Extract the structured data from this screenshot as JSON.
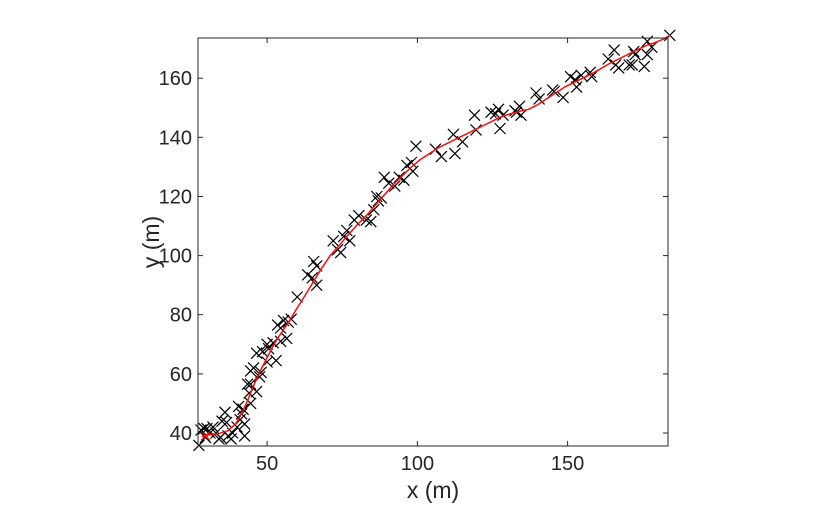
{
  "figure": {
    "background": "#ffffff"
  },
  "chart_data": {
    "type": "scatter",
    "title": "",
    "xlabel": "x (m)",
    "ylabel": "y (m)",
    "xlim": [
      27,
      183.4
    ],
    "ylim": [
      35.6,
      173.6
    ],
    "xticks": [
      50,
      100,
      150
    ],
    "yticks": [
      40,
      60,
      80,
      100,
      120,
      140,
      160
    ],
    "grid": false,
    "legend": null,
    "box": true,
    "axis_color": "#262626",
    "tick_label_color": "#262626",
    "series": [
      {
        "name": "measurements",
        "kind": "scatter",
        "marker": "x",
        "color": "#000000",
        "marker_size": 11,
        "points": [
          [
            27.3,
            35.8
          ],
          [
            28,
            41
          ],
          [
            29,
            41.5
          ],
          [
            29.5,
            38.5
          ],
          [
            30,
            41.5
          ],
          [
            31,
            40
          ],
          [
            32,
            42
          ],
          [
            33,
            40
          ],
          [
            34,
            38
          ],
          [
            34.5,
            38.5
          ],
          [
            35,
            44
          ],
          [
            36,
            47
          ],
          [
            36.5,
            43.5
          ],
          [
            37,
            39
          ],
          [
            38,
            38
          ],
          [
            38.5,
            40
          ],
          [
            40,
            42
          ],
          [
            40.5,
            49
          ],
          [
            41,
            44.5
          ],
          [
            41.5,
            46.5
          ],
          [
            42,
            48
          ],
          [
            42.5,
            39
          ],
          [
            42.5,
            43
          ],
          [
            43.5,
            56.5
          ],
          [
            44,
            53.5
          ],
          [
            44.5,
            50
          ],
          [
            44.5,
            56.5
          ],
          [
            44.5,
            61
          ],
          [
            45.5,
            62
          ],
          [
            46.5,
            54
          ],
          [
            46.5,
            67
          ],
          [
            47.5,
            59
          ],
          [
            48,
            60.5
          ],
          [
            48.5,
            67.5
          ],
          [
            50,
            64
          ],
          [
            50,
            70
          ],
          [
            50.5,
            68.5
          ],
          [
            52,
            70.5
          ],
          [
            53,
            64.5
          ],
          [
            53.5,
            76.5
          ],
          [
            54.5,
            71
          ],
          [
            54.5,
            75.5
          ],
          [
            55.5,
            78
          ],
          [
            56.5,
            72
          ],
          [
            57,
            77.5
          ],
          [
            58,
            78.5
          ],
          [
            60,
            86
          ],
          [
            63.5,
            93.5
          ],
          [
            65,
            92.5
          ],
          [
            65.5,
            98
          ],
          [
            66.5,
            96.5
          ],
          [
            66.5,
            90
          ],
          [
            72,
            105
          ],
          [
            73.5,
            102
          ],
          [
            74.5,
            101
          ],
          [
            75.5,
            106.5
          ],
          [
            76.5,
            108.5
          ],
          [
            77.5,
            105
          ],
          [
            79,
            112
          ],
          [
            80.5,
            113.5
          ],
          [
            83,
            112
          ],
          [
            84.5,
            111.5
          ],
          [
            85.5,
            115.5
          ],
          [
            86.5,
            120
          ],
          [
            87,
            118.5
          ],
          [
            88,
            119.5
          ],
          [
            89,
            126.5
          ],
          [
            90.5,
            124.5
          ],
          [
            92.5,
            123.5
          ],
          [
            94,
            126.5
          ],
          [
            95.5,
            125.5
          ],
          [
            96.5,
            130.5
          ],
          [
            98,
            131.5
          ],
          [
            98.5,
            128.5
          ],
          [
            99.5,
            137
          ],
          [
            106,
            136
          ],
          [
            108,
            133.5
          ],
          [
            112,
            141
          ],
          [
            112.5,
            134.5
          ],
          [
            115,
            138.5
          ],
          [
            119,
            147.5
          ],
          [
            119.5,
            142.5
          ],
          [
            124.5,
            148.5
          ],
          [
            126,
            148
          ],
          [
            127,
            149.5
          ],
          [
            127.5,
            143
          ],
          [
            128.5,
            147.5
          ],
          [
            132.5,
            149
          ],
          [
            133,
            148.5
          ],
          [
            134,
            150.5
          ],
          [
            134.5,
            147.5
          ],
          [
            139.5,
            155
          ],
          [
            140.5,
            153
          ],
          [
            145,
            156
          ],
          [
            145.5,
            155.5
          ],
          [
            148.5,
            153.5
          ],
          [
            151,
            160.5
          ],
          [
            152.5,
            159.5
          ],
          [
            153,
            157
          ],
          [
            154.5,
            161
          ],
          [
            157.5,
            162
          ],
          [
            158,
            160.5
          ],
          [
            163.5,
            166.5
          ],
          [
            165.5,
            169.5
          ],
          [
            166,
            164.5
          ],
          [
            167,
            163.5
          ],
          [
            170.5,
            164.5
          ],
          [
            171.5,
            164.5
          ],
          [
            172,
            169
          ],
          [
            172.5,
            168
          ],
          [
            175.5,
            164
          ],
          [
            176.5,
            168
          ],
          [
            176.5,
            172.5
          ],
          [
            178,
            170.5
          ],
          [
            184,
            174.5
          ]
        ]
      },
      {
        "name": "smoothed-path",
        "kind": "line",
        "color": "#fb0d0d",
        "width": 1.5,
        "points": [
          [
            28.5,
            38.8
          ],
          [
            31,
            39.5
          ],
          [
            34,
            39.8
          ],
          [
            37,
            40.8
          ],
          [
            39.5,
            43
          ],
          [
            41.5,
            46.5
          ],
          [
            43.5,
            51
          ],
          [
            45.5,
            56
          ],
          [
            47.5,
            60.5
          ],
          [
            49.5,
            64.5
          ],
          [
            51.5,
            68.5
          ],
          [
            53.5,
            72
          ],
          [
            55.5,
            75
          ],
          [
            57.5,
            78
          ],
          [
            59.5,
            81.5
          ],
          [
            62,
            85.5
          ],
          [
            65,
            90.5
          ],
          [
            68,
            95.5
          ],
          [
            71,
            100
          ],
          [
            74,
            103.5
          ],
          [
            77,
            107
          ],
          [
            80,
            110.5
          ],
          [
            83,
            113.5
          ],
          [
            86,
            117
          ],
          [
            89,
            120.5
          ],
          [
            92,
            124
          ],
          [
            95,
            127
          ],
          [
            98,
            130
          ],
          [
            101,
            132.5
          ],
          [
            104,
            134.5
          ],
          [
            107,
            136.5
          ],
          [
            110,
            138
          ],
          [
            113,
            139.5
          ],
          [
            116,
            141
          ],
          [
            119,
            142.5
          ],
          [
            122,
            144
          ],
          [
            125,
            145.5
          ],
          [
            128,
            147
          ],
          [
            131,
            148
          ],
          [
            134,
            148.8
          ],
          [
            137,
            149.5
          ],
          [
            140,
            151
          ],
          [
            143,
            153
          ],
          [
            146,
            155
          ],
          [
            149,
            157
          ],
          [
            152,
            158.5
          ],
          [
            155,
            160
          ],
          [
            158,
            161.5
          ],
          [
            161,
            163.2
          ],
          [
            164,
            165
          ],
          [
            167,
            166.5
          ],
          [
            170,
            168
          ],
          [
            173,
            169.5
          ],
          [
            176,
            171
          ],
          [
            179,
            172
          ],
          [
            182,
            173.3
          ],
          [
            184,
            174.5
          ]
        ]
      },
      {
        "name": "start-marker",
        "kind": "scatter",
        "marker": "x",
        "color": "#fb0d0d",
        "marker_size": 9,
        "points": [
          [
            29.5,
            39
          ]
        ]
      }
    ]
  }
}
